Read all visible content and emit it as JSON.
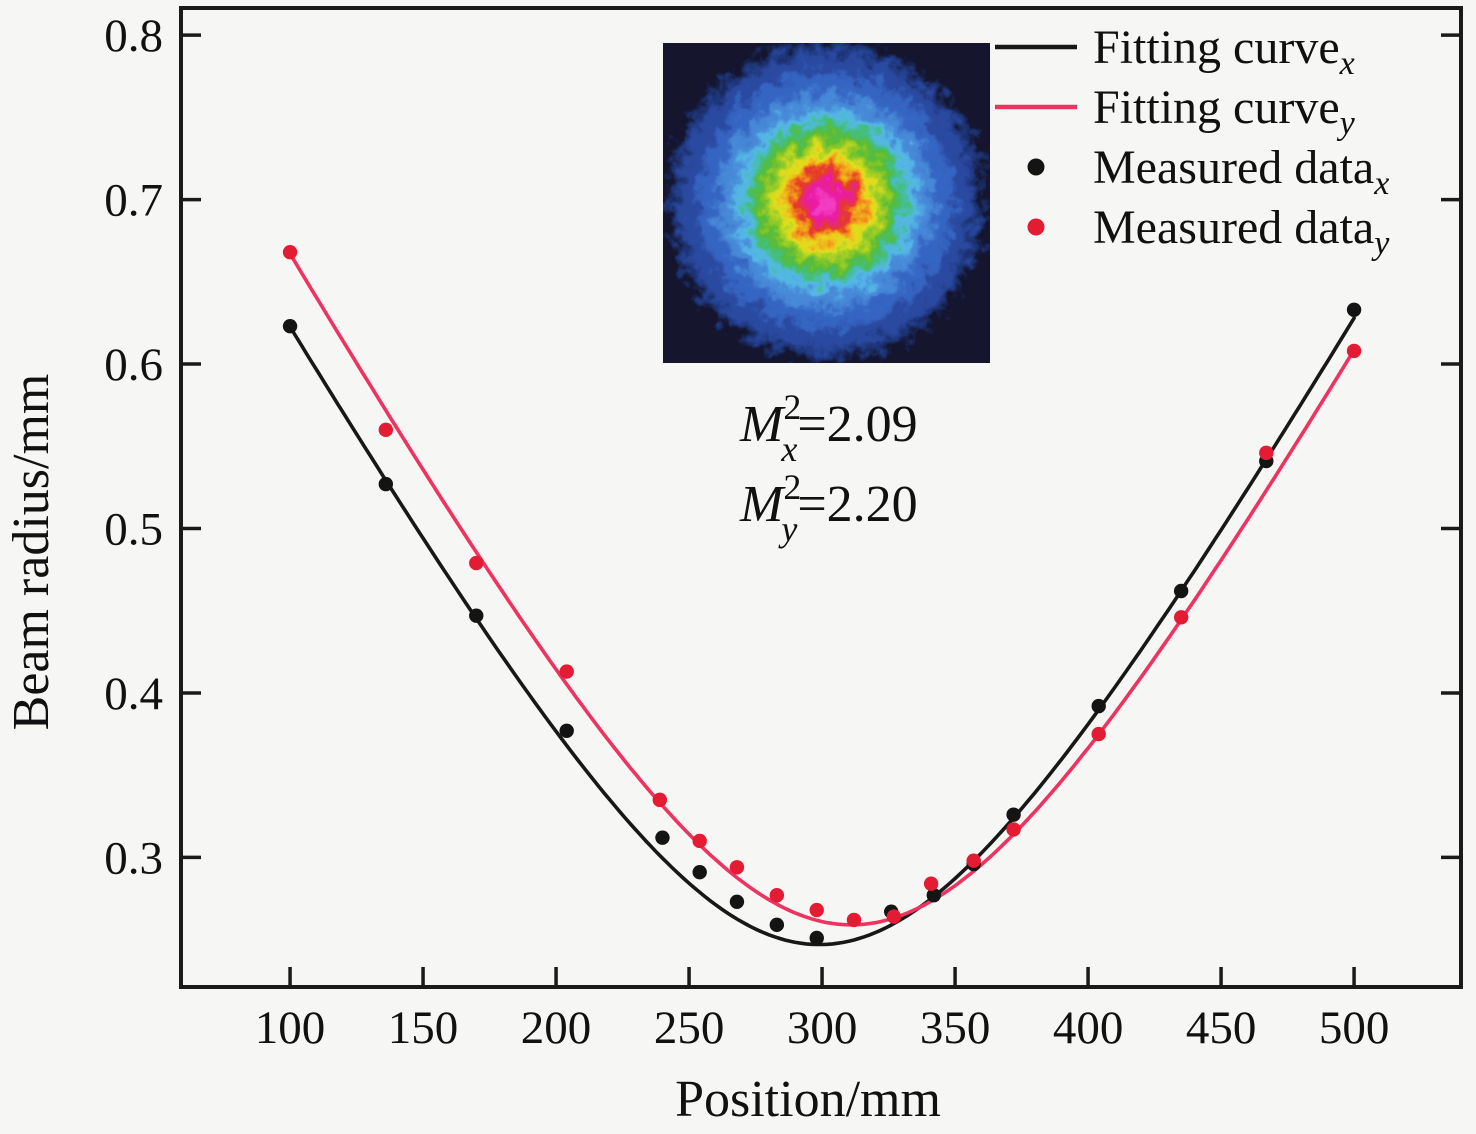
{
  "figure": {
    "description": "Beam quality M-squared measurement: beam radius vs position with hyperbolic fitting curves and measured data points, inset laser beam profile image",
    "background_color": "#f6f6f4",
    "axis_color": "#1a1a1a"
  },
  "chart_data": {
    "type": "scatter",
    "title": "",
    "xlabel": "Position/mm",
    "ylabel": "Beam radius/mm",
    "xlim": [
      59,
      540.2
    ],
    "ylim": [
      0.2212,
      0.8165
    ],
    "x_ticks": [
      100,
      150,
      200,
      250,
      300,
      350,
      400,
      450,
      500
    ],
    "y_ticks": [
      0.3,
      0.4,
      0.5,
      0.6,
      0.7,
      0.8
    ],
    "grid": false,
    "legend_position": "top-right",
    "series": [
      {
        "name": "Fitting curve",
        "subscript": "x",
        "kind": "line",
        "color": "#181818",
        "fit_model": {
          "type": "gaussian-beam-hyperbola",
          "w0": 0.247,
          "z0": 299,
          "zR": 86.0,
          "range": [
            100,
            500
          ]
        }
      },
      {
        "name": "Fitting curve",
        "subscript": "y",
        "kind": "line",
        "color": "#ee3360",
        "fit_model": {
          "type": "gaussian-beam-hyperbola",
          "w0": 0.259,
          "z0": 311,
          "zR": 88.9,
          "range": [
            100,
            500
          ]
        }
      },
      {
        "name": "Measured data",
        "subscript": "x",
        "kind": "scatter",
        "color": "#141414",
        "points": [
          [
            100,
            0.623
          ],
          [
            136,
            0.527
          ],
          [
            170,
            0.447
          ],
          [
            204,
            0.377
          ],
          [
            240,
            0.312
          ],
          [
            254,
            0.291
          ],
          [
            268,
            0.273
          ],
          [
            283,
            0.259
          ],
          [
            298,
            0.251
          ],
          [
            326,
            0.267
          ],
          [
            342,
            0.277
          ],
          [
            357,
            0.296
          ],
          [
            372,
            0.326
          ],
          [
            404,
            0.392
          ],
          [
            435,
            0.462
          ],
          [
            467,
            0.541
          ],
          [
            500,
            0.633
          ]
        ]
      },
      {
        "name": "Measured data",
        "subscript": "y",
        "kind": "scatter",
        "color": "#e31b33",
        "points": [
          [
            100,
            0.668
          ],
          [
            136,
            0.56
          ],
          [
            170,
            0.479
          ],
          [
            204,
            0.413
          ],
          [
            239,
            0.335
          ],
          [
            254,
            0.31
          ],
          [
            268,
            0.294
          ],
          [
            283,
            0.277
          ],
          [
            298,
            0.268
          ],
          [
            312,
            0.262
          ],
          [
            327,
            0.264
          ],
          [
            341,
            0.284
          ],
          [
            357,
            0.298
          ],
          [
            372,
            0.317
          ],
          [
            404,
            0.375
          ],
          [
            435,
            0.446
          ],
          [
            467,
            0.546
          ],
          [
            500,
            0.608
          ]
        ]
      }
    ],
    "annotations": [
      {
        "base": "M",
        "sup": "2",
        "sub": "x",
        "rhs": "=2.09",
        "color": "#141414"
      },
      {
        "base": "M",
        "sup": "2",
        "sub": "y",
        "rhs": "=2.20",
        "color": "#ee2255"
      }
    ],
    "inset": {
      "name": "laser-beam-profile",
      "background": "#15152e",
      "rings": [
        {
          "r": 158,
          "color": "#1f3478"
        },
        {
          "r": 148,
          "color": "#2a4aa0"
        },
        {
          "r": 128,
          "color": "#3565c2"
        },
        {
          "r": 108,
          "color": "#4688d8"
        },
        {
          "r": 92,
          "color": "#55b8e6"
        },
        {
          "r": 80,
          "color": "#3fbf77"
        },
        {
          "r": 72,
          "color": "#55bb33"
        },
        {
          "r": 62,
          "color": "#96cc28"
        },
        {
          "r": 52,
          "color": "#e3e01b"
        },
        {
          "r": 42,
          "color": "#f59f1d"
        },
        {
          "r": 34,
          "color": "#e53424"
        },
        {
          "r": 22,
          "color": "#ea17a5"
        },
        {
          "r": 11,
          "color": "#f23cc3"
        }
      ]
    }
  }
}
